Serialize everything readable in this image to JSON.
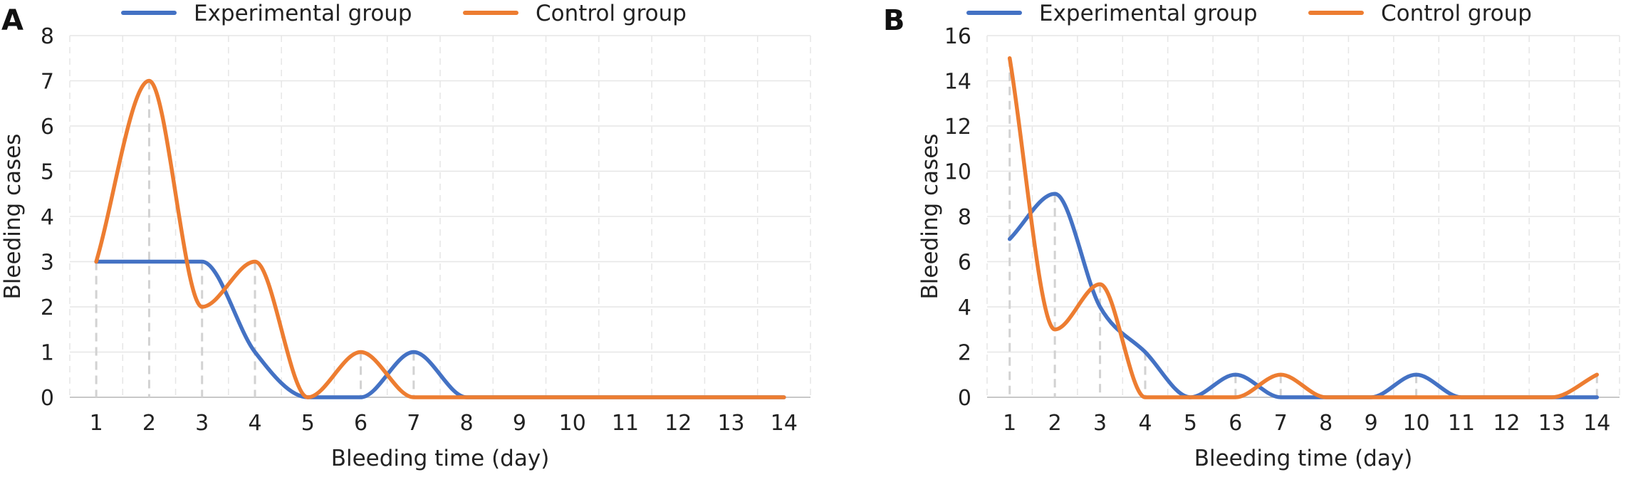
{
  "chart_data": [
    {
      "panel_label": "A",
      "type": "line",
      "smooth": true,
      "x": [
        1,
        2,
        3,
        4,
        5,
        6,
        7,
        8,
        9,
        10,
        11,
        12,
        13,
        14
      ],
      "xlabel": "Bleeding time (day)",
      "ylabel": "Bleeding cases",
      "xlim": [
        0.5,
        14.5
      ],
      "ylim": [
        0,
        8
      ],
      "yticks": [
        0,
        1,
        2,
        3,
        4,
        5,
        6,
        7,
        8
      ],
      "grid": true,
      "legend_position": "top",
      "series": [
        {
          "name": "Experimental group",
          "color": "#4472C4",
          "values": [
            3,
            3,
            3,
            1,
            0,
            0,
            1,
            0,
            0,
            0,
            0,
            0,
            0,
            0
          ]
        },
        {
          "name": "Control group",
          "color": "#ED7D31",
          "values": [
            3,
            7,
            2,
            3,
            0,
            1,
            0,
            0,
            0,
            0,
            0,
            0,
            0,
            0
          ]
        }
      ]
    },
    {
      "panel_label": "B",
      "type": "line",
      "smooth": true,
      "x": [
        1,
        2,
        3,
        4,
        5,
        6,
        7,
        8,
        9,
        10,
        11,
        12,
        13,
        14
      ],
      "xlabel": "Bleeding time (day)",
      "ylabel": "Bleeding cases",
      "xlim": [
        0.5,
        14.5
      ],
      "ylim": [
        0,
        16
      ],
      "yticks": [
        0,
        2,
        4,
        6,
        8,
        10,
        12,
        14,
        16
      ],
      "grid": true,
      "legend_position": "top",
      "series": [
        {
          "name": "Experimental group",
          "color": "#4472C4",
          "values": [
            7,
            9,
            4,
            2,
            0,
            1,
            0,
            0,
            0,
            1,
            0,
            0,
            0,
            0
          ]
        },
        {
          "name": "Control group",
          "color": "#ED7D31",
          "values": [
            15,
            3,
            5,
            0,
            0,
            0,
            1,
            0,
            0,
            0,
            0,
            0,
            0,
            1
          ]
        }
      ]
    }
  ]
}
